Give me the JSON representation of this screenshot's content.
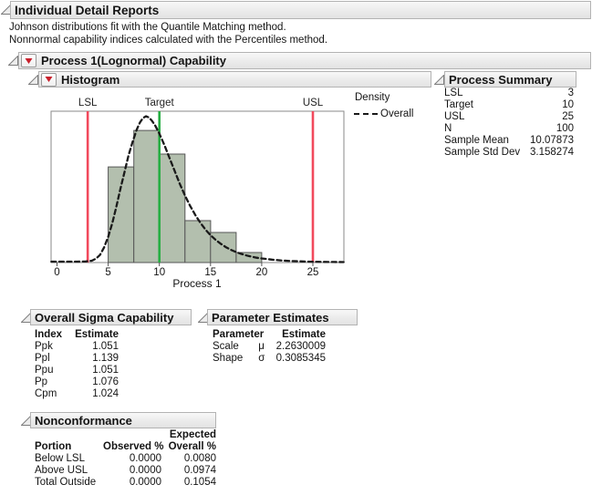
{
  "page": {
    "title": "Individual Detail Reports",
    "subtitle1": "Johnson distributions fit with the Quantile Matching method.",
    "subtitle2": "Nonnormal capability indices calculated with the Percentiles method."
  },
  "sections": {
    "capability": {
      "title": "Process 1(Lognormal) Capability"
    },
    "histogram": {
      "title": "Histogram"
    },
    "process_summary": {
      "title": "Process Summary"
    },
    "overall_sigma": {
      "title": "Overall Sigma Capability"
    },
    "parameter_estimates": {
      "title": "Parameter Estimates"
    },
    "nonconformance": {
      "title": "Nonconformance"
    }
  },
  "process_summary": {
    "rows": [
      [
        "LSL",
        "3"
      ],
      [
        "Target",
        "10"
      ],
      [
        "USL",
        "25"
      ],
      [
        "N",
        "100"
      ],
      [
        "Sample Mean",
        "10.07873"
      ],
      [
        "Sample Std Dev",
        "3.158274"
      ]
    ]
  },
  "overall_sigma": {
    "headers": [
      "Index",
      "Estimate"
    ],
    "rows": [
      [
        "Ppk",
        "1.051"
      ],
      [
        "Ppl",
        "1.139"
      ],
      [
        "Ppu",
        "1.051"
      ],
      [
        "Pp",
        "1.076"
      ],
      [
        "Cpm",
        "1.024"
      ]
    ]
  },
  "parameter_estimates": {
    "headers": [
      "Parameter",
      "",
      "Estimate"
    ],
    "rows": [
      [
        "Scale",
        "μ",
        "2.2630009"
      ],
      [
        "Shape",
        "σ",
        "0.3085345"
      ]
    ]
  },
  "nonconformance": {
    "expected_label": "Expected",
    "headers": [
      "Portion",
      "Observed %",
      "Overall %"
    ],
    "rows": [
      [
        "Below LSL",
        "0.0000",
        "0.0080"
      ],
      [
        "Above USL",
        "0.0000",
        "0.0974"
      ],
      [
        "Total Outside",
        "0.0000",
        "0.1054"
      ]
    ]
  },
  "chart_data": {
    "type": "bar",
    "subtype": "histogram-with-density-curve",
    "xlabel": "Process 1",
    "x_ticks": [
      0,
      5,
      10,
      15,
      20,
      25
    ],
    "xlim": [
      -0.6,
      28
    ],
    "grid": false,
    "bins": {
      "edges": [
        5,
        7.5,
        10,
        12.5,
        15,
        17.5,
        20
      ],
      "counts_est": [
        23,
        31,
        26,
        10,
        7,
        2
      ],
      "heights_frac": [
        0.632,
        0.873,
        0.717,
        0.277,
        0.199,
        0.066
      ]
    },
    "ref_lines": [
      {
        "label": "LSL",
        "x": 3,
        "color": "#f2495c"
      },
      {
        "label": "Target",
        "x": 10,
        "color": "#27ae43"
      },
      {
        "label": "USL",
        "x": 25,
        "color": "#f2495c"
      }
    ],
    "legend": {
      "title": "Density",
      "position": "right",
      "entries": [
        {
          "label": "Overall",
          "style": "dashed-black"
        }
      ]
    },
    "colors": {
      "bar_fill": "#b3bfae",
      "bar_stroke": "#565656",
      "curve": "#1a1a1a",
      "frame": "#8a8a8a"
    },
    "density_curve": {
      "name": "Overall",
      "points_x_heightfrac": [
        [
          -0.55,
          0.006
        ],
        [
          1,
          0.006
        ],
        [
          2,
          0.006
        ],
        [
          2.8,
          0.007
        ],
        [
          3.4,
          0.012
        ],
        [
          3.8,
          0.025
        ],
        [
          4.2,
          0.05
        ],
        [
          4.6,
          0.1
        ],
        [
          5,
          0.17
        ],
        [
          5.4,
          0.26
        ],
        [
          5.8,
          0.37
        ],
        [
          6.2,
          0.49
        ],
        [
          6.6,
          0.6
        ],
        [
          7,
          0.71
        ],
        [
          7.4,
          0.8
        ],
        [
          7.8,
          0.88
        ],
        [
          8.1,
          0.925
        ],
        [
          8.4,
          0.955
        ],
        [
          8.7,
          0.967
        ],
        [
          9,
          0.958
        ],
        [
          9.3,
          0.935
        ],
        [
          9.6,
          0.905
        ],
        [
          10,
          0.852
        ],
        [
          10.5,
          0.775
        ],
        [
          11,
          0.69
        ],
        [
          11.5,
          0.605
        ],
        [
          12,
          0.52
        ],
        [
          12.5,
          0.443
        ],
        [
          13,
          0.375
        ],
        [
          13.5,
          0.315
        ],
        [
          14,
          0.263
        ],
        [
          14.5,
          0.218
        ],
        [
          15,
          0.181
        ],
        [
          15.5,
          0.15
        ],
        [
          16,
          0.124
        ],
        [
          16.5,
          0.102
        ],
        [
          17,
          0.084
        ],
        [
          17.5,
          0.069
        ],
        [
          18,
          0.057
        ],
        [
          18.5,
          0.047
        ],
        [
          19,
          0.039
        ],
        [
          19.5,
          0.032
        ],
        [
          20,
          0.027
        ],
        [
          21,
          0.019
        ],
        [
          22,
          0.013
        ],
        [
          23,
          0.0095
        ],
        [
          24,
          0.007
        ],
        [
          25,
          0.0055
        ],
        [
          26,
          0.0045
        ],
        [
          27,
          0.0038
        ],
        [
          28,
          0.0032
        ]
      ]
    }
  }
}
